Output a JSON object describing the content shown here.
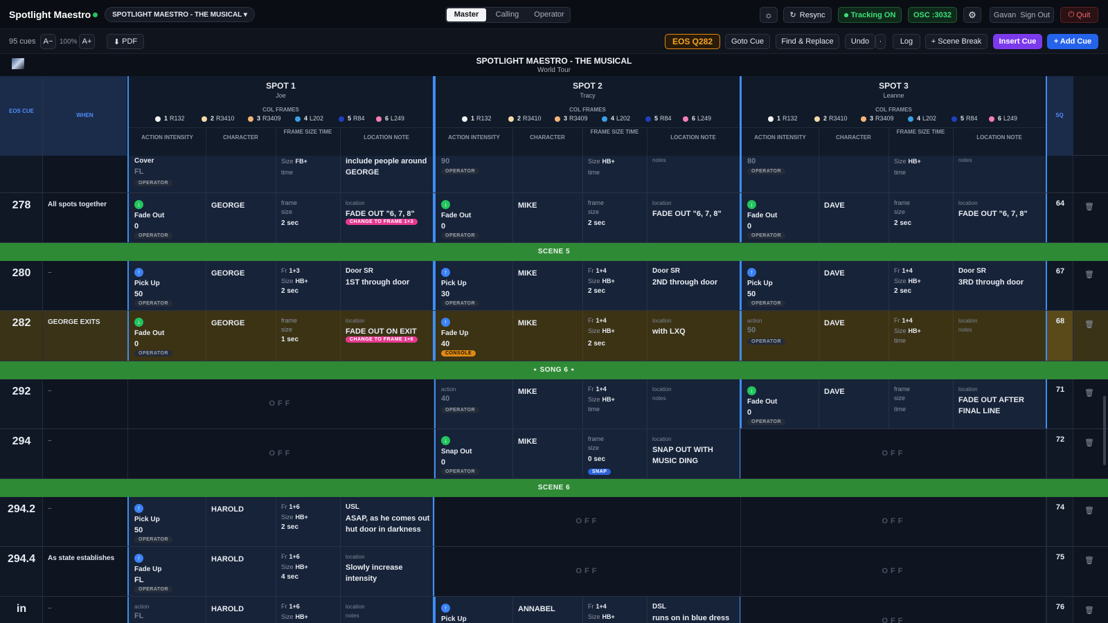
{
  "app": {
    "title": "Spotlight Maestro",
    "show_selector": "SPOTLIGHT MAESTRO - THE MUSICAL ▾"
  },
  "modes": [
    "Master",
    "Calling",
    "Operator"
  ],
  "top_right": {
    "resync": "Resync",
    "tracking": "Tracking ON",
    "osc": "OSC :3032",
    "user": "Gavan",
    "signout": "Sign Out",
    "quit": "Quit"
  },
  "toolbar": {
    "cue_count": "95 cues",
    "font_minus": "A−",
    "zoom": "100%",
    "font_plus": "A+",
    "pdf": "PDF",
    "eos": "EOS Q282",
    "goto": "Goto Cue",
    "find": "Find & Replace",
    "undo": "Undo",
    "undo_more": "·",
    "log": "Log",
    "scene_break": "+ Scene Break",
    "insert": "Insert Cue",
    "add": "+ Add Cue"
  },
  "doc": {
    "title": "SPOTLIGHT MAESTRO - THE MUSICAL",
    "subtitle": "World Tour"
  },
  "columns": {
    "eos": "EOS CUE",
    "when": "WHEN",
    "sq": "SQ",
    "col_frames": "COL FRAMES",
    "action": "ACTION INTENSITY",
    "character": "CHARACTER",
    "frame": "FRAME SIZE TIME",
    "location": "LOCATION NOTE"
  },
  "spots": [
    {
      "name": "SPOT 1",
      "operator": "Joe"
    },
    {
      "name": "SPOT 2",
      "operator": "Tracy"
    },
    {
      "name": "SPOT 3",
      "operator": "Leanne"
    }
  ],
  "frames": [
    {
      "n": "1",
      "code": "R132",
      "color": "#f2f2f2"
    },
    {
      "n": "2",
      "code": "R3410",
      "color": "#f6d9a8"
    },
    {
      "n": "3",
      "code": "R3409",
      "color": "#f5b47a"
    },
    {
      "n": "4",
      "code": "L202",
      "color": "#3aa0e6"
    },
    {
      "n": "5",
      "code": "R84",
      "color": "#1f3fbf"
    },
    {
      "n": "6",
      "code": "L249",
      "color": "#f47fb2"
    }
  ],
  "rows": {
    "r276": {
      "s1_action": "Cover",
      "s1_int": "FL",
      "s1_size": "FB+",
      "s1_time": "time",
      "s1_loc": "include people around GEORGE",
      "s2_int": "90",
      "s2_size": "HB+",
      "s2_time": "time",
      "s2_loc": "notes",
      "s3_int": "80",
      "s3_size": "HB+",
      "s3_time": "time",
      "s3_loc": "notes"
    },
    "r278": {
      "num": "278",
      "when": "All spots together",
      "sq": "64",
      "s1": {
        "action": "Fade Out",
        "int": "0",
        "char": "GEORGE",
        "time": "2 sec",
        "loc": "FADE OUT \"6, 7, 8\"",
        "badge": "CHANGE TO FRAME 1+3"
      },
      "s2": {
        "action": "Fade Out",
        "int": "0",
        "char": "MIKE",
        "time": "2 sec",
        "loc": "FADE OUT \"6, 7, 8\""
      },
      "s3": {
        "action": "Fade Out",
        "int": "0",
        "char": "DAVE",
        "time": "2 sec",
        "loc": "FADE OUT \"6, 7, 8\""
      }
    },
    "scene5": "SCENE 5",
    "r280": {
      "num": "280",
      "when": "–",
      "sq": "67",
      "s1": {
        "action": "Pick Up",
        "int": "50",
        "char": "GEORGE",
        "fr": "1+3",
        "size": "HB+",
        "time": "2 sec",
        "loc": "Door SR",
        "note": "1ST through door"
      },
      "s2": {
        "action": "Pick Up",
        "int": "30",
        "char": "MIKE",
        "fr": "1+4",
        "size": "HB+",
        "time": "2 sec",
        "loc": "Door SR",
        "note": "2ND through door"
      },
      "s3": {
        "action": "Pick Up",
        "int": "50",
        "char": "DAVE",
        "fr": "1+4",
        "size": "HB+",
        "time": "2 sec",
        "loc": "Door SR",
        "note": "3RD through door"
      }
    },
    "r282": {
      "num": "282",
      "when": "GEORGE EXITS",
      "sq": "68",
      "s1": {
        "action": "Fade Out",
        "int": "0",
        "char": "GEORGE",
        "time": "1 sec",
        "loc": "FADE OUT ON EXIT",
        "badge": "CHANGE TO FRAME 1+6"
      },
      "s2": {
        "action": "Fade Up",
        "int": "40",
        "char": "MIKE",
        "fr": "1+4",
        "size": "HB+",
        "time": "2 sec",
        "loc": "with LXQ",
        "badge": "CONSOLE"
      },
      "s3": {
        "int": "50",
        "char": "DAVE",
        "fr": "1+4",
        "size": "HB+",
        "time": "time"
      }
    },
    "song6": "SONG 6",
    "r292": {
      "num": "292",
      "when": "–",
      "sq": "71",
      "s1_off": "OFF",
      "s2": {
        "int": "40",
        "char": "MIKE",
        "fr": "1+4",
        "size": "HB+",
        "time": "time"
      },
      "s3": {
        "action": "Fade Out",
        "int": "0",
        "char": "DAVE",
        "loc": "FADE OUT AFTER FINAL LINE"
      }
    },
    "r294": {
      "num": "294",
      "when": "–",
      "sq": "72",
      "s1_off": "OFF",
      "s2": {
        "action": "Snap Out",
        "int": "0",
        "char": "MIKE",
        "time": "0 sec",
        "loc": "SNAP OUT WITH MUSIC DING",
        "badge": "SNAP"
      },
      "s3_off": "OFF"
    },
    "scene6": "SCENE 6",
    "r2942": {
      "num": "294.2",
      "when": "–",
      "sq": "74",
      "s1": {
        "action": "Pick Up",
        "int": "50",
        "char": "HAROLD",
        "fr": "1+6",
        "size": "HB+",
        "time": "2 sec",
        "loc": "USL",
        "note": "ASAP, as he comes out hut door in darkness"
      },
      "s2_off": "OFF",
      "s3_off": "OFF"
    },
    "r2944": {
      "num": "294.4",
      "when": "As state establishes",
      "sq": "75",
      "s1": {
        "action": "Fade Up",
        "int": "FL",
        "char": "HAROLD",
        "fr": "1+6",
        "size": "HB+",
        "time": "4 sec",
        "note": "Slowly increase intensity"
      },
      "s2_off": "OFF",
      "s3_off": "OFF"
    },
    "rin": {
      "num": "in",
      "when": "–",
      "sq": "76",
      "s1": {
        "int": "FL",
        "char": "HAROLD",
        "fr": "1+6",
        "size": "HB+"
      },
      "s2": {
        "action": "Pick Up",
        "char": "ANNABEL",
        "fr": "1+4",
        "size": "HB+",
        "loc": "DSL",
        "note": "runs on in blue dress"
      },
      "s3_off": "OFF"
    }
  },
  "labels": {
    "operator": "OPERATOR",
    "action": "action",
    "frame": "frame",
    "size": "size",
    "location": "location",
    "notes": "notes",
    "fr": "Fr",
    "sizeW": "Size",
    "time": "time"
  }
}
